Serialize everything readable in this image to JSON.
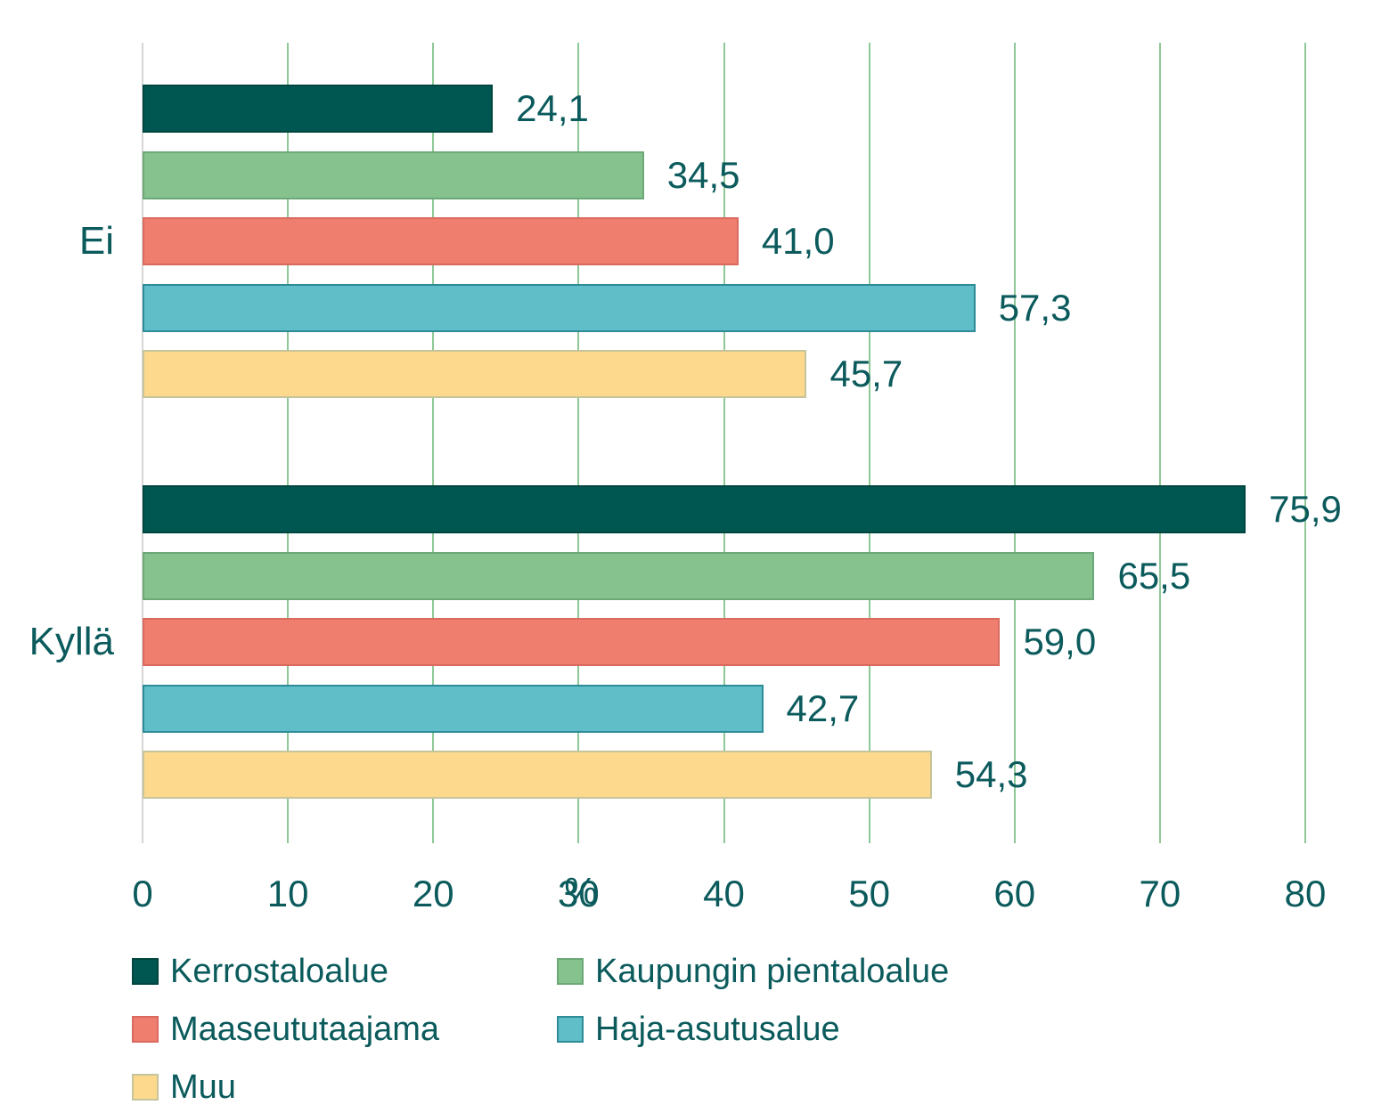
{
  "chart_data": {
    "type": "bar",
    "orientation": "horizontal",
    "title": "",
    "categories": [
      "Ei",
      "Kyllä"
    ],
    "series": [
      {
        "name": "Kerrostaloalue",
        "color": "#005751",
        "border_color": "#00453F",
        "values": [
          24.1,
          75.9
        ],
        "labels": [
          "24,1",
          "75,9"
        ]
      },
      {
        "name": "Kaupungin pientaloalue",
        "color": "#85C28E",
        "border_color": "#6CA878",
        "values": [
          34.5,
          65.5
        ],
        "labels": [
          "34,5",
          "65,5"
        ]
      },
      {
        "name": "Maaseututaajama",
        "color": "#F07E6F",
        "border_color": "#D96A5F",
        "values": [
          41.0,
          59.0
        ],
        "labels": [
          "41,0",
          "59,0"
        ]
      },
      {
        "name": "Haja-asutusalue",
        "color": "#5FBEC8",
        "border_color": "#2E8C99",
        "values": [
          57.3,
          42.7
        ],
        "labels": [
          "57,3",
          "42,7"
        ]
      },
      {
        "name": "Muu",
        "color": "#FDD98D",
        "border_color": "#C6C49A",
        "values": [
          45.7,
          54.3
        ],
        "labels": [
          "45,7",
          "54,3"
        ]
      }
    ],
    "xlabel": "%",
    "x_ticks": [
      "0",
      "10",
      "20",
      "30",
      "40",
      "50",
      "60",
      "70",
      "80"
    ],
    "xlim": [
      0,
      80
    ],
    "grid": "vertical",
    "gridline_color": "#8FC897",
    "axis_line_color": "#D6D6D6",
    "text_color": "#0B5A5C",
    "legend_position": "bottom",
    "legend_columns": 2
  }
}
